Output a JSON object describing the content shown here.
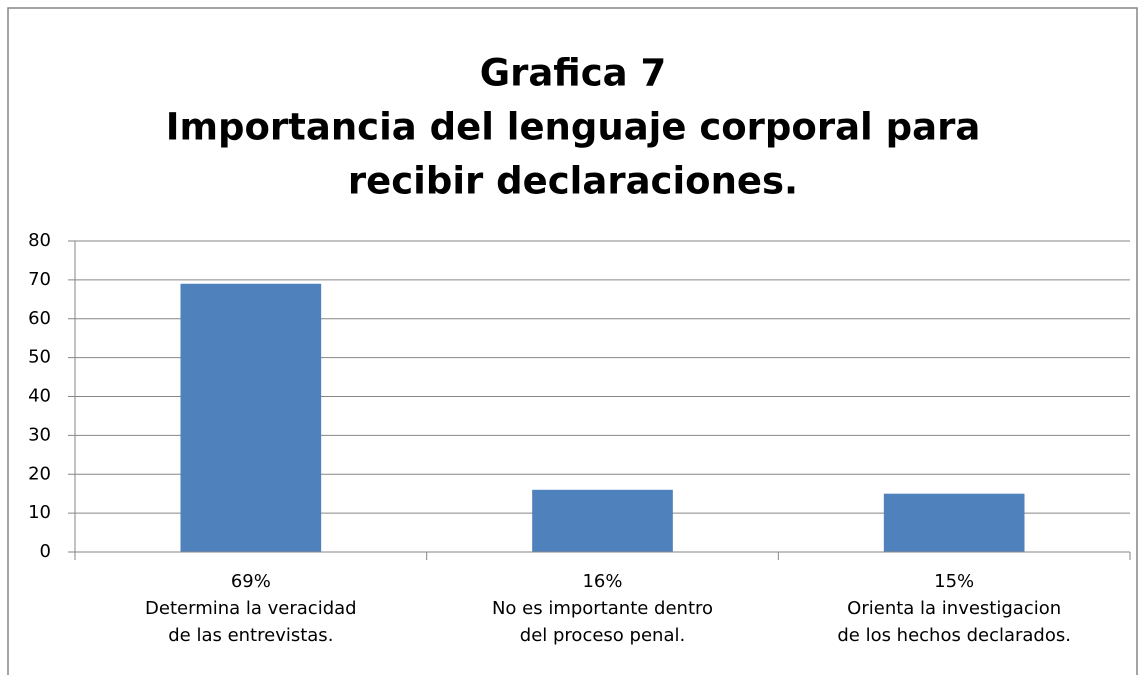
{
  "chart_data": {
    "type": "bar",
    "title": [
      "Grafica 7",
      "Importancia del lenguaje corporal para",
      "recibir declaraciones."
    ],
    "categories": [
      [
        "69%",
        "Determina la veracidad",
        "de las entrevistas."
      ],
      [
        "16%",
        "No es importante dentro",
        "del proceso penal."
      ],
      [
        "15%",
        "Orienta la investigacion",
        "de los hechos declarados."
      ]
    ],
    "values": [
      69,
      16,
      15
    ],
    "color": "#4f81bd",
    "ylim": [
      0,
      80
    ],
    "yticks": [
      0,
      10,
      20,
      30,
      40,
      50,
      60,
      70,
      80
    ],
    "grid": true
  }
}
